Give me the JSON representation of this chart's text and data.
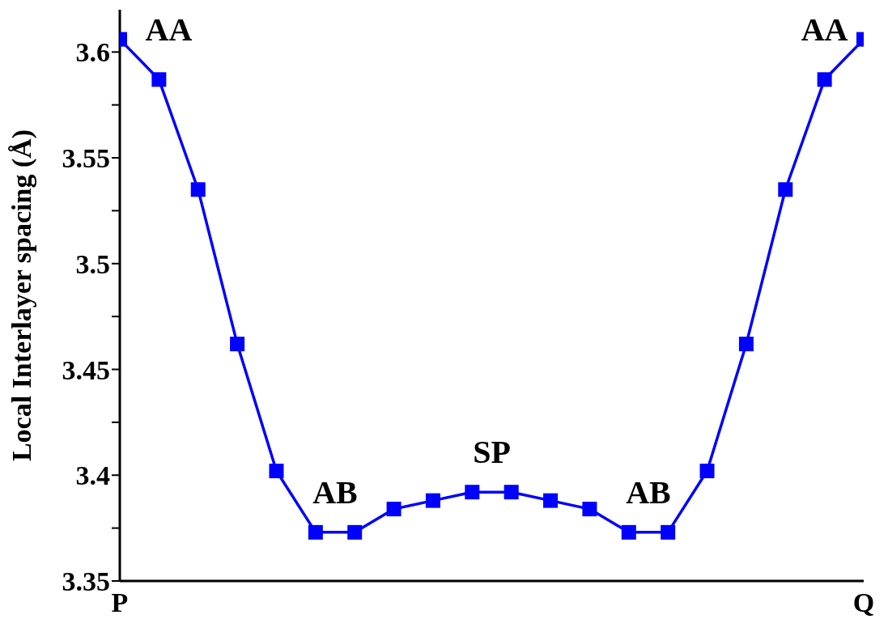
{
  "chart_data": {
    "type": "line",
    "ylabel": "Local Interlayer spacing (Å)",
    "categories": [
      "P",
      null,
      null,
      null,
      null,
      null,
      null,
      null,
      null,
      null,
      null,
      null,
      null,
      null,
      null,
      null,
      null,
      null,
      null,
      "Q"
    ],
    "series": [
      {
        "color": "#0000ff",
        "values": [
          3.606,
          3.587,
          3.535,
          3.462,
          3.402,
          3.373,
          3.373,
          3.384,
          3.388,
          3.392,
          3.392,
          3.388,
          3.384,
          3.373,
          3.373,
          3.402,
          3.462,
          3.535,
          3.587,
          3.606
        ]
      }
    ],
    "ylim": [
      3.35,
      3.62
    ],
    "yticks": [
      3.35,
      {
        "value": 3.375,
        "label": null
      },
      3.4,
      {
        "value": 3.425,
        "label": null
      },
      3.45,
      {
        "value": 3.475,
        "label": null
      },
      3.5,
      {
        "value": 3.525,
        "label": null
      },
      3.55,
      {
        "value": 3.575,
        "label": null
      },
      3.6
    ],
    "annotations": [
      "AA",
      "AB",
      "SP",
      "AB",
      "AA"
    ],
    "grid": false,
    "legend": false,
    "marker": "square",
    "line_style": "solid"
  }
}
